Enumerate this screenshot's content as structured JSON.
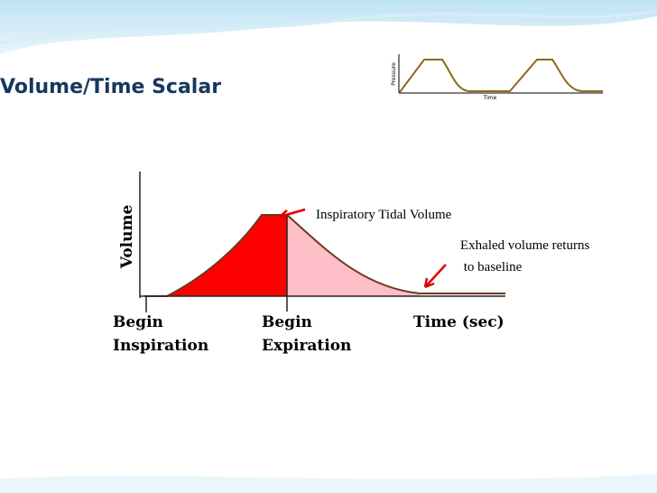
{
  "title": "Volume/Time Scalar",
  "thumbnail": {
    "y_label": "Pressure",
    "x_label": "Time"
  },
  "diagram": {
    "y_label": "Volume",
    "begin_inspiration": [
      "Begin",
      "Inspiration"
    ],
    "begin_expiration": [
      "Begin",
      "Expiration"
    ],
    "x_label": "Time (sec)",
    "annotations": [
      "Inspiratory Tidal Volume",
      [
        "Exhaled volume returns",
        " to baseline"
      ]
    ]
  }
}
